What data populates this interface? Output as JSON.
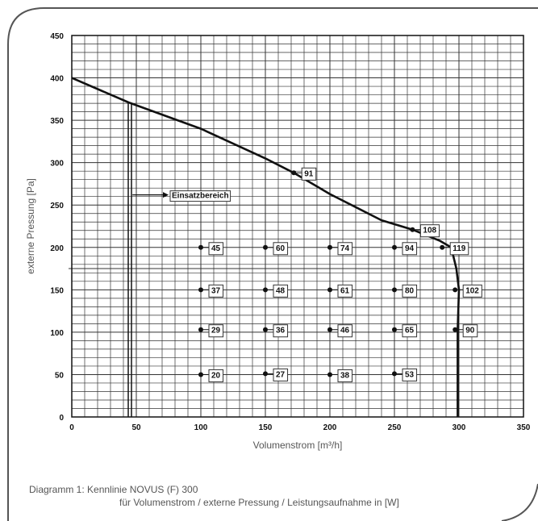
{
  "chart_data": {
    "type": "line",
    "xlabel": "Volumenstrom [m³/h]",
    "ylabel": "externe Pressung [Pa]",
    "xlim": [
      0,
      350
    ],
    "ylim": [
      0,
      450
    ],
    "x_ticks": [
      "0",
      "50",
      "100",
      "150",
      "200",
      "250",
      "300",
      "350"
    ],
    "y_ticks": [
      "0",
      "50",
      "100",
      "150",
      "200",
      "250",
      "300",
      "350",
      "400",
      "450"
    ],
    "grid": true,
    "curve": [
      {
        "x": 0,
        "y": 400
      },
      {
        "x": 44,
        "y": 371
      },
      {
        "x": 100,
        "y": 340
      },
      {
        "x": 150,
        "y": 305
      },
      {
        "x": 172,
        "y": 288
      },
      {
        "x": 200,
        "y": 263
      },
      {
        "x": 240,
        "y": 232
      },
      {
        "x": 264,
        "y": 221
      },
      {
        "x": 285,
        "y": 208
      },
      {
        "x": 294,
        "y": 200
      },
      {
        "x": 298,
        "y": 175
      },
      {
        "x": 300,
        "y": 150
      },
      {
        "x": 299,
        "y": 103
      },
      {
        "x": 299,
        "y": 0
      }
    ],
    "range_line": {
      "x": 45,
      "y_from": 0,
      "y_to": 371
    },
    "annotation": {
      "text": "Einsatzbereich",
      "arrow_from_x": 47,
      "to_x": 75,
      "y": 262
    },
    "data_labels": [
      {
        "x": 100,
        "y": 200,
        "label": "45"
      },
      {
        "x": 150,
        "y": 200,
        "label": "60"
      },
      {
        "x": 200,
        "y": 200,
        "label": "74"
      },
      {
        "x": 250,
        "y": 200,
        "label": "94"
      },
      {
        "x": 287,
        "y": 200,
        "label": "119"
      },
      {
        "x": 100,
        "y": 150,
        "label": "37"
      },
      {
        "x": 150,
        "y": 150,
        "label": "48"
      },
      {
        "x": 200,
        "y": 150,
        "label": "61"
      },
      {
        "x": 250,
        "y": 150,
        "label": "80"
      },
      {
        "x": 297,
        "y": 150,
        "label": "102"
      },
      {
        "x": 100,
        "y": 103,
        "label": "29"
      },
      {
        "x": 150,
        "y": 103,
        "label": "36"
      },
      {
        "x": 200,
        "y": 103,
        "label": "46"
      },
      {
        "x": 250,
        "y": 103,
        "label": "65"
      },
      {
        "x": 297,
        "y": 103,
        "label": "90"
      },
      {
        "x": 100,
        "y": 50,
        "label": "20"
      },
      {
        "x": 150,
        "y": 51,
        "label": "27"
      },
      {
        "x": 200,
        "y": 50,
        "label": "38"
      },
      {
        "x": 250,
        "y": 51,
        "label": "53"
      },
      {
        "x": 172,
        "y": 288,
        "label": "91"
      },
      {
        "x": 264,
        "y": 221,
        "label": "108"
      }
    ]
  },
  "caption": {
    "line1": "Diagramm 1: Kennlinie NOVUS (F) 300",
    "line2": "für Volumenstrom / externe Pressung / Leistungsaufnahme in [W]"
  },
  "colors": {
    "frame": "#555555",
    "grid": "#333333",
    "curve": "#111111",
    "text": "#111111",
    "caption": "#555555"
  }
}
